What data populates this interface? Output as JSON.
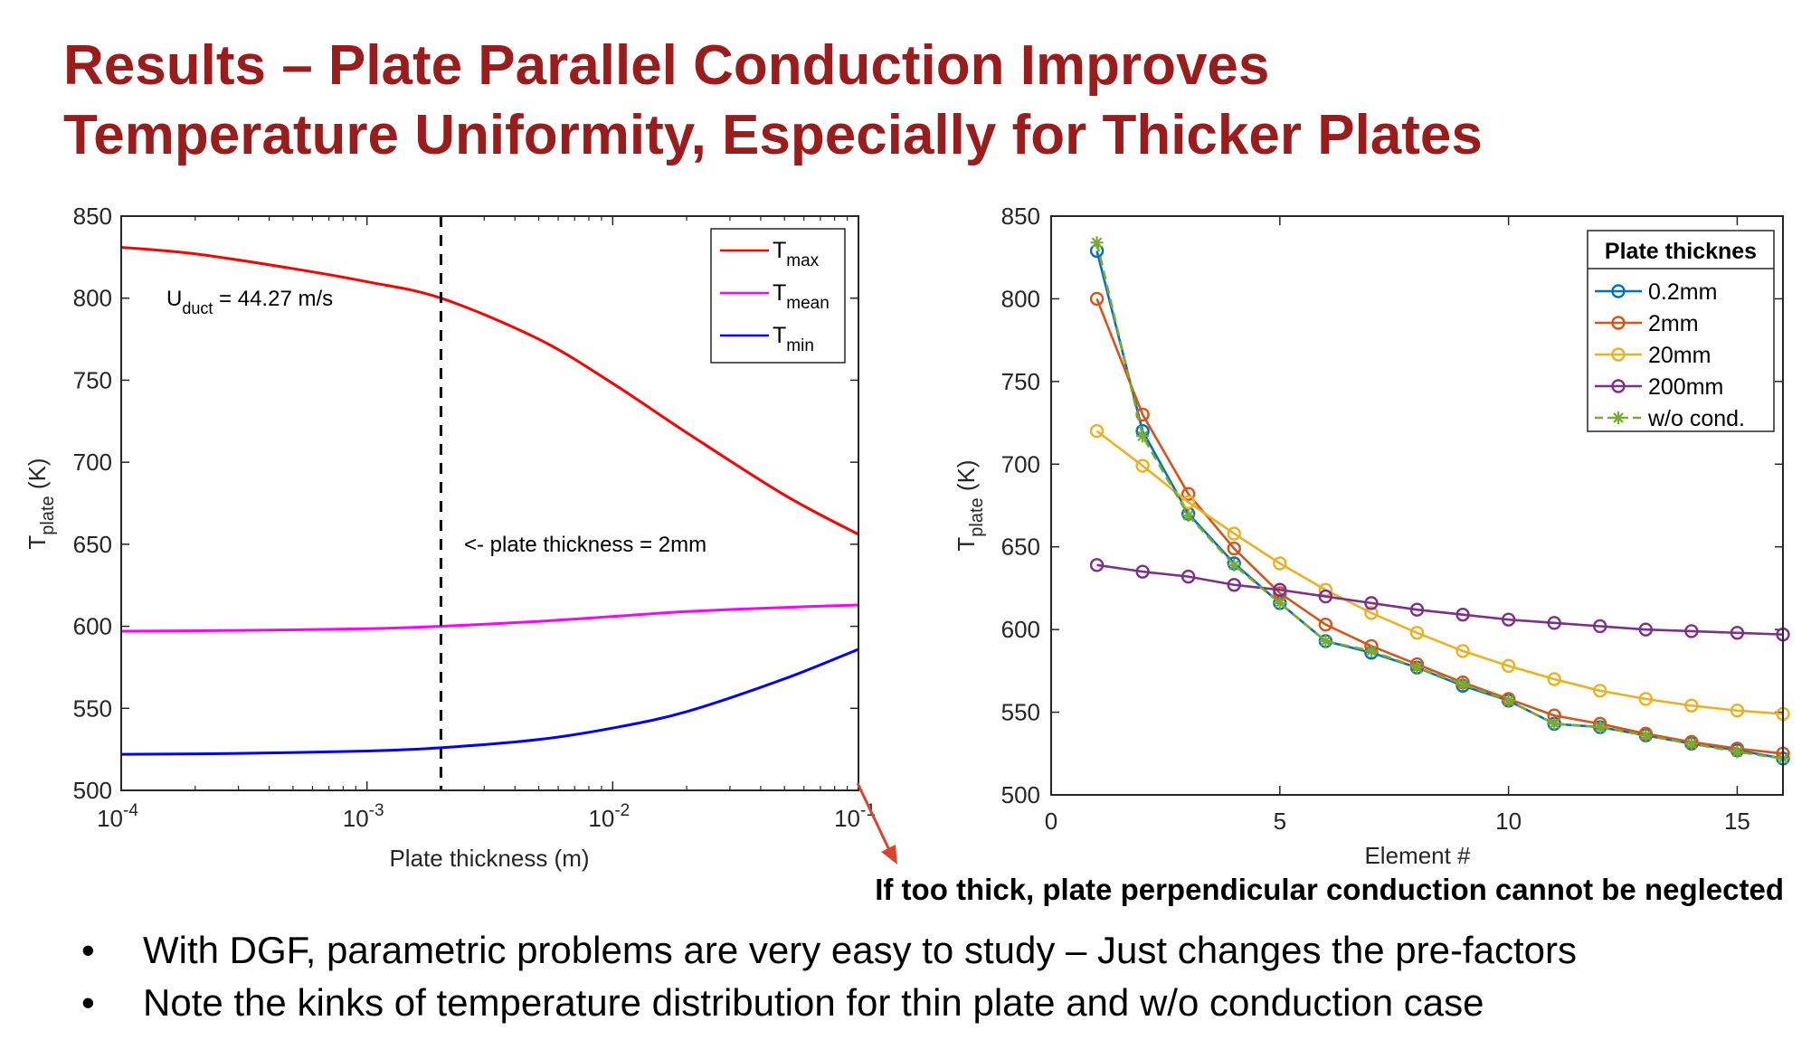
{
  "title": {
    "line1": "Results – Plate Parallel Conduction Improves",
    "line2": "Temperature Uniformity, Especially for Thicker Plates"
  },
  "chart_data": [
    {
      "type": "line",
      "xscale": "log",
      "xlim": [
        0.0001,
        0.1
      ],
      "ylim": [
        500,
        850
      ],
      "x_ticks": [
        {
          "value": 0.0001,
          "base": "10",
          "exp": "-4"
        },
        {
          "value": 0.001,
          "base": "10",
          "exp": "-3"
        },
        {
          "value": 0.01,
          "base": "10",
          "exp": "-2"
        },
        {
          "value": 0.1,
          "base": "10",
          "exp": "-1"
        }
      ],
      "y_ticks": [
        500,
        550,
        600,
        650,
        700,
        750,
        800,
        850
      ],
      "xlabel": "Plate thickness (m)",
      "ylabel": {
        "base": "T",
        "sub": "plate",
        "rest": " (K)"
      },
      "legend_position": "top-right",
      "series": [
        {
          "name": "T",
          "sub": "max",
          "color": "#ff0000",
          "x": [
            0.0001,
            0.0002,
            0.0005,
            0.001,
            0.002,
            0.005,
            0.01,
            0.02,
            0.05,
            0.1
          ],
          "y": [
            831,
            827,
            818,
            810,
            800,
            775,
            748,
            718,
            680,
            656
          ]
        },
        {
          "name": "T",
          "sub": "mean",
          "color": "#ff00ff",
          "x": [
            0.0001,
            0.0003,
            0.001,
            0.002,
            0.005,
            0.01,
            0.02,
            0.05,
            0.1
          ],
          "y": [
            597,
            597.5,
            598.5,
            600,
            603,
            606,
            609,
            611.5,
            613
          ]
        },
        {
          "name": "T",
          "sub": "min",
          "color": "#0000ff",
          "x": [
            0.0001,
            0.0003,
            0.001,
            0.002,
            0.005,
            0.01,
            0.02,
            0.05,
            0.1
          ],
          "y": [
            522,
            522.5,
            524,
            526,
            531,
            538,
            548,
            568,
            586
          ]
        }
      ],
      "reference_line": {
        "x": 0.002,
        "style": "dashed",
        "color": "#000000"
      },
      "annotations": [
        {
          "id": "u-duct",
          "base": "U",
          "sub": "duct",
          "rest": " = 44.27 m/s"
        },
        {
          "id": "thickness-note",
          "text": "<- plate thickness = 2mm"
        }
      ]
    },
    {
      "type": "line",
      "xlim": [
        0,
        16
      ],
      "ylim": [
        500,
        850
      ],
      "x_ticks": [
        0,
        5,
        10,
        15
      ],
      "y_ticks": [
        500,
        550,
        600,
        650,
        700,
        750,
        800,
        850
      ],
      "xlabel": "Element #",
      "ylabel": {
        "base": "T",
        "sub": "plate",
        "rest": " (K)"
      },
      "legend_title": "Plate thicknes",
      "legend_position": "top-right",
      "x": [
        1,
        2,
        3,
        4,
        5,
        6,
        7,
        8,
        9,
        10,
        11,
        12,
        13,
        14,
        15,
        16
      ],
      "series": [
        {
          "name": "0.2mm",
          "color": "#0072bd",
          "marker": "o",
          "linestyle": "solid",
          "values": [
            829,
            720,
            670,
            640,
            616,
            593,
            586,
            577,
            566,
            557,
            543,
            541,
            536,
            531,
            527,
            522
          ]
        },
        {
          "name": "2mm",
          "color": "#d95319",
          "marker": "o",
          "linestyle": "solid",
          "values": [
            800,
            730,
            682,
            649,
            622,
            603,
            590,
            579,
            568,
            558,
            548,
            543,
            537,
            532,
            528,
            525
          ]
        },
        {
          "name": "20mm",
          "color": "#edb120",
          "marker": "o",
          "linestyle": "solid",
          "values": [
            720,
            699,
            677,
            658,
            640,
            624,
            610,
            598,
            587,
            578,
            570,
            563,
            558,
            554,
            551,
            549
          ]
        },
        {
          "name": "200mm",
          "color": "#7e2f8e",
          "marker": "o",
          "linestyle": "solid",
          "values": [
            639,
            635,
            632,
            627,
            624,
            620,
            616,
            612,
            609,
            606,
            604,
            602,
            600,
            599,
            598,
            597
          ]
        },
        {
          "name": "w/o cond.",
          "color": "#77ac30",
          "marker": "*",
          "linestyle": "dashed",
          "values": [
            834,
            717,
            669,
            639,
            616,
            593,
            587,
            577,
            567,
            557,
            543,
            541,
            536,
            531,
            526,
            522
          ]
        }
      ]
    }
  ],
  "callout": "If too thick, plate perpendicular conduction cannot be neglected",
  "arrow_color": "#d9442b",
  "bullets": [
    "With DGF, parametric problems are very easy to study – Just changes the pre-factors",
    "Note the kinks of temperature distribution for thin plate and w/o conduction case"
  ],
  "bullet_symbol": "•"
}
